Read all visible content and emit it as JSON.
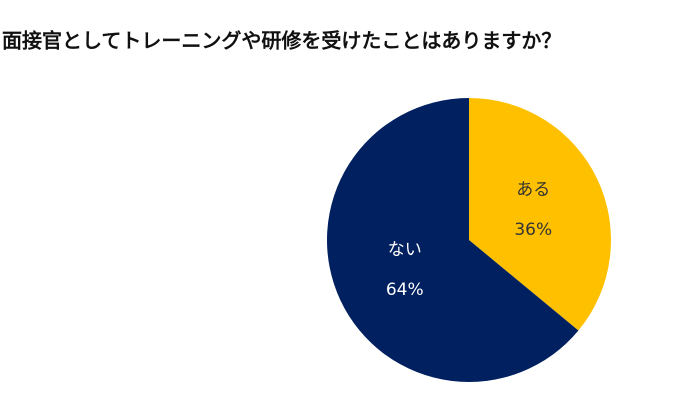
{
  "chart_data": {
    "type": "pie",
    "title": "面接官としてトレーニングや研修を受けたことはありますか？",
    "categories": [
      "ある",
      "ない"
    ],
    "values": [
      36,
      64
    ],
    "value_labels": [
      "36%",
      "64%"
    ],
    "colors": [
      "#ffc000",
      "#002060"
    ],
    "label_colors": [
      "#333333",
      "#ffffff"
    ]
  }
}
